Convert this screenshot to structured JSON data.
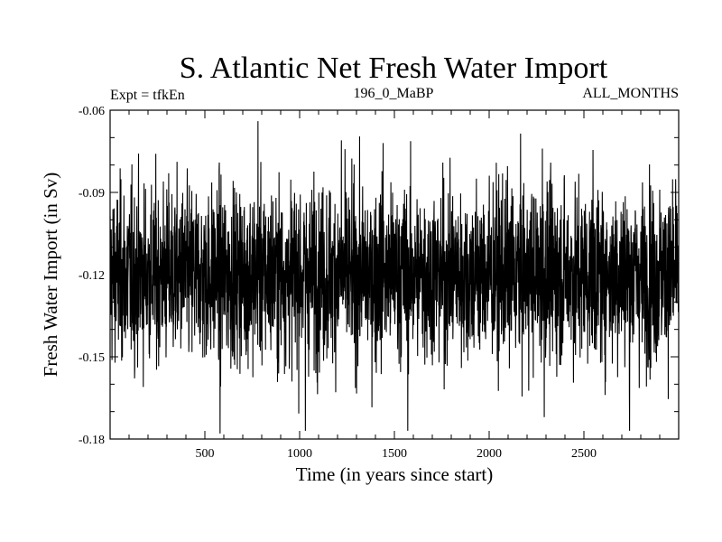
{
  "chart_data": {
    "type": "line",
    "title": "S. Atlantic Net Fresh Water Import",
    "subtitle_left": "Expt = tfkEn",
    "subtitle_center": "196_0_MaBP",
    "subtitle_right": "ALL_MONTHS",
    "xlabel": "Time (in years since start)",
    "ylabel": "Fresh Water Import (in Sv)",
    "xlim": [
      0,
      3000
    ],
    "ylim": [
      -0.18,
      -0.06
    ],
    "xticks": [
      500,
      1000,
      1500,
      2000,
      2500
    ],
    "xtick_labels": [
      "500",
      "1000",
      "1500",
      "2000",
      "2500"
    ],
    "yticks": [
      -0.18,
      -0.15,
      -0.12,
      -0.09,
      -0.06
    ],
    "ytick_labels": [
      "-0.18",
      "-0.15",
      "-0.12",
      "-0.09",
      "-0.06"
    ],
    "grid": false,
    "series": [
      {
        "color": "#000000",
        "summary": {
          "mean": -0.12,
          "std": 0.016,
          "min": -0.178,
          "max": -0.064,
          "n_points": 3000
        },
        "notable_points": [
          {
            "x": 780,
            "y": -0.064
          },
          {
            "x": 1220,
            "y": -0.071
          },
          {
            "x": 2280,
            "y": -0.074
          },
          {
            "x": 1440,
            "y": -0.072
          },
          {
            "x": 580,
            "y": -0.178
          },
          {
            "x": 1030,
            "y": -0.177
          },
          {
            "x": 1570,
            "y": -0.177
          },
          {
            "x": 2740,
            "y": -0.177
          },
          {
            "x": 2290,
            "y": -0.172
          }
        ]
      }
    ]
  }
}
